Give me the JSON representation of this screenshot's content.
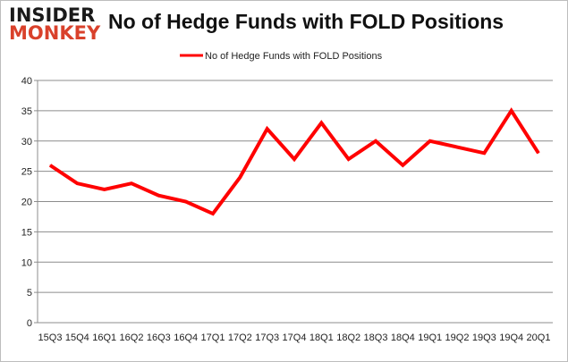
{
  "logo": {
    "line1": "INSIDER",
    "line2": "MONKEY"
  },
  "chart_data": {
    "type": "line",
    "title": "No of Hedge Funds with FOLD Positions",
    "categories": [
      "15Q3",
      "15Q4",
      "16Q1",
      "16Q2",
      "16Q3",
      "16Q4",
      "17Q1",
      "17Q2",
      "17Q3",
      "17Q4",
      "18Q1",
      "18Q2",
      "18Q3",
      "18Q4",
      "19Q1",
      "19Q2",
      "19Q3",
      "19Q4",
      "20Q1"
    ],
    "series": [
      {
        "name": "No of Hedge Funds with FOLD Positions",
        "color": "#ff0000",
        "values": [
          26,
          23,
          22,
          23,
          21,
          20,
          18,
          24,
          32,
          27,
          33,
          27,
          30,
          26,
          30,
          29,
          28,
          35,
          28
        ]
      }
    ],
    "ylim": [
      0,
      40
    ],
    "yticks": [
      0,
      5,
      10,
      15,
      20,
      25,
      30,
      35,
      40
    ],
    "grid": true,
    "legend": "top"
  }
}
